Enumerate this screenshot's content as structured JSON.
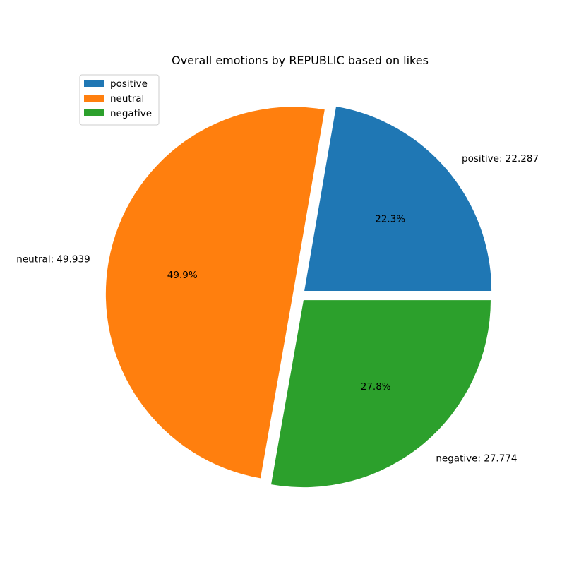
{
  "chart_data": {
    "type": "pie",
    "title": "Overall emotions by REPUBLIC based on likes",
    "slices": [
      {
        "name": "positive",
        "value": 22.287,
        "label": "positive: 22.287",
        "pct_label": "22.3%",
        "color": "#1f77b4"
      },
      {
        "name": "neutral",
        "value": 49.939,
        "label": "neutral: 49.939",
        "pct_label": "49.9%",
        "color": "#ff7f0e"
      },
      {
        "name": "negative",
        "value": 27.774,
        "label": "negative: 27.774",
        "pct_label": "27.8%",
        "color": "#2ca02c"
      }
    ],
    "start_angle_deg": 0,
    "direction": "counterclockwise",
    "exploded": true,
    "legend": {
      "placement": "top-left",
      "entries": [
        "positive",
        "neutral",
        "negative"
      ]
    }
  }
}
